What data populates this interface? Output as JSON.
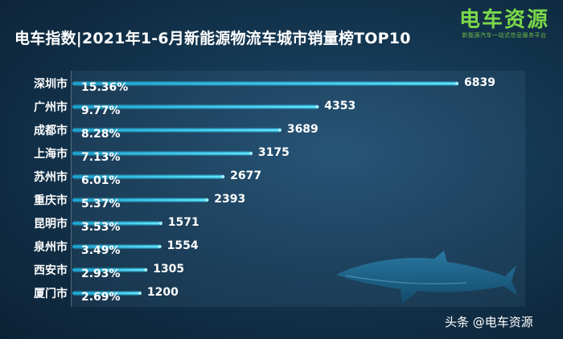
{
  "header": {
    "title": "电车指数|2021年1-6月新能源物流车城市销量榜TOP10"
  },
  "logo": {
    "name": "电车资源",
    "tagline": "新能源汽车一站式信息服务平台"
  },
  "watermark": {
    "text": "头条 @电车资源"
  },
  "colors": {
    "background": "#153853",
    "bar": "#2fd0f5",
    "bar_glow": "#9af0ff",
    "text": "#ffffff",
    "logo": "#7bd84a"
  },
  "decoration": {
    "shark_icon": "shark-silhouette"
  },
  "chart_data": {
    "type": "bar",
    "orientation": "horizontal",
    "title": "电车指数|2021年1-6月新能源物流车城市销量榜TOP10",
    "categories": [
      "深圳市",
      "广州市",
      "成都市",
      "上海市",
      "苏州市",
      "重庆市",
      "昆明市",
      "泉州市",
      "西安市",
      "厦门市"
    ],
    "values": [
      6839,
      4353,
      3689,
      3175,
      2677,
      2393,
      1571,
      1554,
      1305,
      1200
    ],
    "value_labels": [
      "6839",
      "4353",
      "3689",
      "3175",
      "2677",
      "2393",
      "1571",
      "1554",
      "1305",
      "1200"
    ],
    "share_labels": [
      "15.36%",
      "9.77%",
      "8.28%",
      "7.13%",
      "6.01%",
      "5.37%",
      "3.53%",
      "3.49%",
      "2.93%",
      "2.69%"
    ],
    "xlim": [
      0,
      6839
    ],
    "grid": false,
    "legend": "none"
  }
}
